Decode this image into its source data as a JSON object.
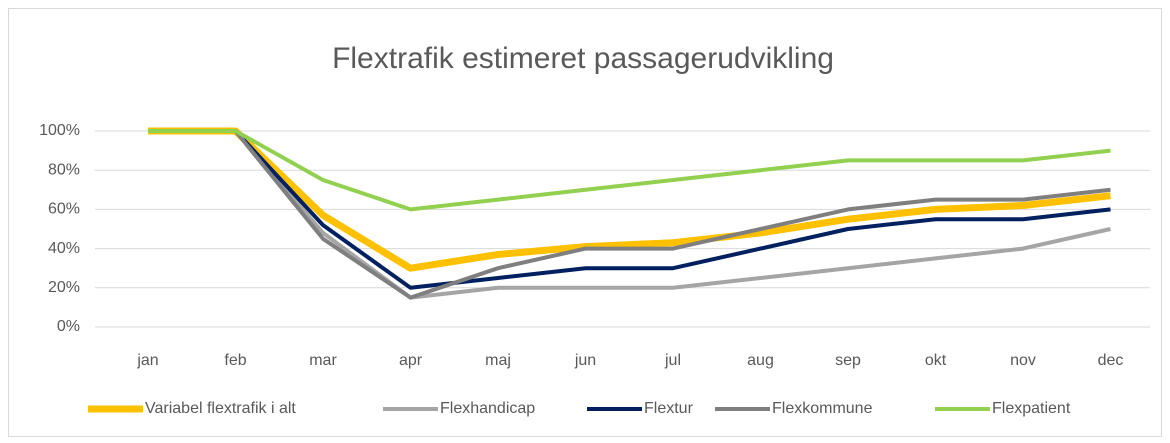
{
  "chart_data": {
    "type": "line",
    "title": "Flextrafik estimeret passagerudvikling",
    "categories": [
      "jan",
      "feb",
      "mar",
      "apr",
      "maj",
      "jun",
      "jul",
      "aug",
      "sep",
      "okt",
      "nov",
      "dec"
    ],
    "series": [
      {
        "name": "Variabel flextrafik i alt",
        "color": "#ffc000",
        "values": [
          100,
          100,
          57,
          30,
          37,
          41,
          43,
          48,
          55,
          60,
          62,
          67
        ]
      },
      {
        "name": "Flexhandicap",
        "color": "#a5a5a5",
        "values": [
          100,
          100,
          48,
          15,
          20,
          20,
          20,
          25,
          30,
          35,
          40,
          50
        ]
      },
      {
        "name": "Flextur",
        "color": "#002060",
        "values": [
          100,
          100,
          52,
          20,
          25,
          30,
          30,
          40,
          50,
          55,
          55,
          60
        ]
      },
      {
        "name": "Flexkommune",
        "color": "#7f7f7f",
        "values": [
          100,
          100,
          45,
          15,
          30,
          40,
          40,
          50,
          60,
          65,
          65,
          70
        ]
      },
      {
        "name": "Flexpatient",
        "color": "#92d050",
        "values": [
          100,
          100,
          75,
          60,
          65,
          70,
          75,
          80,
          85,
          85,
          85,
          90
        ]
      }
    ],
    "ylim": [
      0,
      100
    ],
    "yticks": [
      {
        "value": 0,
        "label": "0%"
      },
      {
        "value": 20,
        "label": "20%"
      },
      {
        "value": 40,
        "label": "40%"
      },
      {
        "value": 60,
        "label": "60%"
      },
      {
        "value": 80,
        "label": "80%"
      },
      {
        "value": 100,
        "label": "100%"
      }
    ],
    "grid": true,
    "legend": "bottom"
  }
}
